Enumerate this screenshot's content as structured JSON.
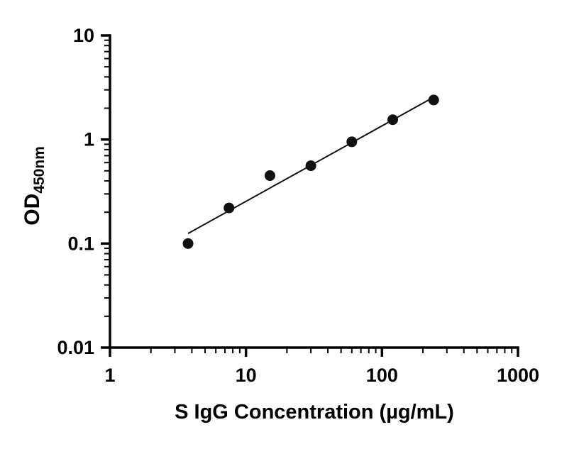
{
  "chart_data": {
    "type": "scatter",
    "title": "",
    "xlabel": "S IgG Concentration (µg/mL)",
    "ylabel": "OD450nm",
    "ylabel_main": "OD",
    "ylabel_sub": "450nm",
    "x_scale": "log",
    "y_scale": "log",
    "xlim": [
      1,
      1000
    ],
    "ylim": [
      0.01,
      10
    ],
    "x_ticks": [
      1,
      10,
      100,
      1000
    ],
    "x_tick_labels": [
      "1",
      "10",
      "100",
      "1000"
    ],
    "y_ticks": [
      0.01,
      0.1,
      1,
      10
    ],
    "y_tick_labels": [
      "0.01",
      "0.1",
      "1",
      "10"
    ],
    "minor_ticks": true,
    "grid": false,
    "legend": "none",
    "points": {
      "x": [
        3.75,
        7.5,
        15,
        30,
        60,
        120,
        240
      ],
      "y": [
        0.1,
        0.22,
        0.45,
        0.56,
        0.95,
        1.55,
        2.4
      ]
    },
    "trendline": {
      "type": "linear-fit-loglog",
      "x": [
        3.75,
        240
      ],
      "y": [
        0.125,
        2.55
      ]
    },
    "marker_color": "#111111",
    "line_color": "#111111",
    "axis_color": "#000000"
  }
}
